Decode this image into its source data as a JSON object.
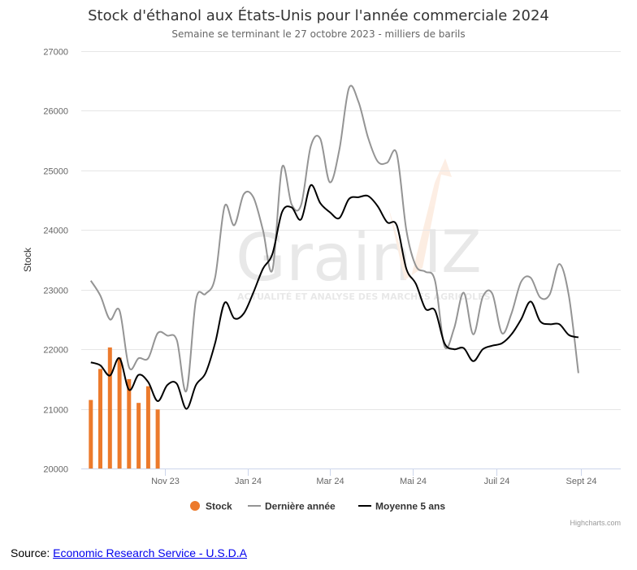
{
  "page": {
    "source_prefix": "Source: ",
    "source_link_text": "Economic Research Service - U.S.D.A",
    "credits": "Highcharts.com",
    "watermark": {
      "text": "Grain",
      "tagline": "ACTUALITÉ ET ANALYSE DES MARCHÉS AGRICOLES"
    }
  },
  "chart_data": {
    "type": "line",
    "title": "Stock d'éthanol aux États-Unis pour l'année commerciale 2024",
    "subtitle": "Semaine se terminant le 27 octobre 2023 - milliers de barils",
    "ylabel": "Stock",
    "xlabel": "",
    "ylim": [
      20000,
      27000
    ],
    "y_ticks": [
      20000,
      21000,
      22000,
      23000,
      24000,
      25000,
      26000,
      27000
    ],
    "x_range": [
      "2023-09-01",
      "2024-09-30"
    ],
    "x_ticks": [
      {
        "date": "2023-11-01",
        "label": "Nov 23"
      },
      {
        "date": "2024-01-01",
        "label": "Jan 24"
      },
      {
        "date": "2024-03-01",
        "label": "Mar 24"
      },
      {
        "date": "2024-05-01",
        "label": "Mai 24"
      },
      {
        "date": "2024-07-01",
        "label": "Juil 24"
      },
      {
        "date": "2024-09-01",
        "label": "Sept 24"
      }
    ],
    "grid": "horizontal",
    "legend_position": "bottom-center",
    "series": [
      {
        "name": "Stock",
        "type": "column",
        "color": "#ec7a2c",
        "points": [
          [
            "2023-09-08",
            21150
          ],
          [
            "2023-09-15",
            21670
          ],
          [
            "2023-09-22",
            22030
          ],
          [
            "2023-09-29",
            21860
          ],
          [
            "2023-10-06",
            21500
          ],
          [
            "2023-10-13",
            21100
          ],
          [
            "2023-10-20",
            21380
          ],
          [
            "2023-10-27",
            20990
          ]
        ]
      },
      {
        "name": "Dernière année",
        "type": "line",
        "color": "#949494",
        "points": [
          [
            "2023-09-08",
            23150
          ],
          [
            "2023-09-15",
            22900
          ],
          [
            "2023-09-22",
            22500
          ],
          [
            "2023-09-29",
            22650
          ],
          [
            "2023-10-06",
            21700
          ],
          [
            "2023-10-13",
            21850
          ],
          [
            "2023-10-20",
            21850
          ],
          [
            "2023-10-27",
            22270
          ],
          [
            "2023-11-03",
            22230
          ],
          [
            "2023-11-10",
            22150
          ],
          [
            "2023-11-17",
            21300
          ],
          [
            "2023-11-24",
            22830
          ],
          [
            "2023-12-01",
            22930
          ],
          [
            "2023-12-08",
            23200
          ],
          [
            "2023-12-15",
            24400
          ],
          [
            "2023-12-22",
            24080
          ],
          [
            "2023-12-29",
            24600
          ],
          [
            "2024-01-05",
            24550
          ],
          [
            "2024-01-12",
            24000
          ],
          [
            "2024-01-19",
            23330
          ],
          [
            "2024-01-26",
            25050
          ],
          [
            "2024-02-02",
            24430
          ],
          [
            "2024-02-09",
            24420
          ],
          [
            "2024-02-16",
            25400
          ],
          [
            "2024-02-23",
            25530
          ],
          [
            "2024-03-01",
            24800
          ],
          [
            "2024-03-08",
            25350
          ],
          [
            "2024-03-15",
            26380
          ],
          [
            "2024-03-22",
            26150
          ],
          [
            "2024-03-29",
            25550
          ],
          [
            "2024-04-05",
            25150
          ],
          [
            "2024-04-12",
            25130
          ],
          [
            "2024-04-19",
            25280
          ],
          [
            "2024-04-26",
            24000
          ],
          [
            "2024-05-03",
            23400
          ],
          [
            "2024-05-10",
            23300
          ],
          [
            "2024-05-17",
            23150
          ],
          [
            "2024-05-24",
            22050
          ],
          [
            "2024-05-31",
            22350
          ],
          [
            "2024-06-07",
            22950
          ],
          [
            "2024-06-14",
            22250
          ],
          [
            "2024-06-21",
            22880
          ],
          [
            "2024-06-28",
            22930
          ],
          [
            "2024-07-05",
            22270
          ],
          [
            "2024-07-12",
            22600
          ],
          [
            "2024-07-19",
            23130
          ],
          [
            "2024-07-26",
            23200
          ],
          [
            "2024-08-02",
            22870
          ],
          [
            "2024-08-09",
            22920
          ],
          [
            "2024-08-16",
            23430
          ],
          [
            "2024-08-23",
            22900
          ],
          [
            "2024-08-30",
            21600
          ]
        ]
      },
      {
        "name": "Moyenne 5 ans",
        "type": "line",
        "color": "#000000",
        "points": [
          [
            "2023-09-08",
            21780
          ],
          [
            "2023-09-15",
            21730
          ],
          [
            "2023-09-22",
            21560
          ],
          [
            "2023-09-29",
            21850
          ],
          [
            "2023-10-06",
            21320
          ],
          [
            "2023-10-13",
            21570
          ],
          [
            "2023-10-20",
            21450
          ],
          [
            "2023-10-27",
            21130
          ],
          [
            "2023-11-03",
            21400
          ],
          [
            "2023-11-10",
            21420
          ],
          [
            "2023-11-17",
            21000
          ],
          [
            "2023-11-24",
            21400
          ],
          [
            "2023-12-01",
            21600
          ],
          [
            "2023-12-08",
            22100
          ],
          [
            "2023-12-15",
            22780
          ],
          [
            "2023-12-22",
            22520
          ],
          [
            "2023-12-29",
            22600
          ],
          [
            "2024-01-05",
            22950
          ],
          [
            "2024-01-12",
            23350
          ],
          [
            "2024-01-19",
            23600
          ],
          [
            "2024-01-26",
            24300
          ],
          [
            "2024-02-02",
            24380
          ],
          [
            "2024-02-09",
            24180
          ],
          [
            "2024-02-16",
            24750
          ],
          [
            "2024-02-23",
            24450
          ],
          [
            "2024-03-01",
            24300
          ],
          [
            "2024-03-08",
            24200
          ],
          [
            "2024-03-15",
            24520
          ],
          [
            "2024-03-22",
            24550
          ],
          [
            "2024-03-29",
            24570
          ],
          [
            "2024-04-05",
            24400
          ],
          [
            "2024-04-12",
            24130
          ],
          [
            "2024-04-19",
            24080
          ],
          [
            "2024-04-26",
            23350
          ],
          [
            "2024-05-03",
            23100
          ],
          [
            "2024-05-10",
            22680
          ],
          [
            "2024-05-17",
            22650
          ],
          [
            "2024-05-24",
            22100
          ],
          [
            "2024-05-31",
            22000
          ],
          [
            "2024-06-07",
            22020
          ],
          [
            "2024-06-14",
            21800
          ],
          [
            "2024-06-21",
            22000
          ],
          [
            "2024-06-28",
            22060
          ],
          [
            "2024-07-05",
            22100
          ],
          [
            "2024-07-12",
            22250
          ],
          [
            "2024-07-19",
            22500
          ],
          [
            "2024-07-26",
            22800
          ],
          [
            "2024-08-02",
            22470
          ],
          [
            "2024-08-09",
            22420
          ],
          [
            "2024-08-16",
            22420
          ],
          [
            "2024-08-23",
            22240
          ],
          [
            "2024-08-30",
            22200
          ]
        ]
      }
    ]
  }
}
